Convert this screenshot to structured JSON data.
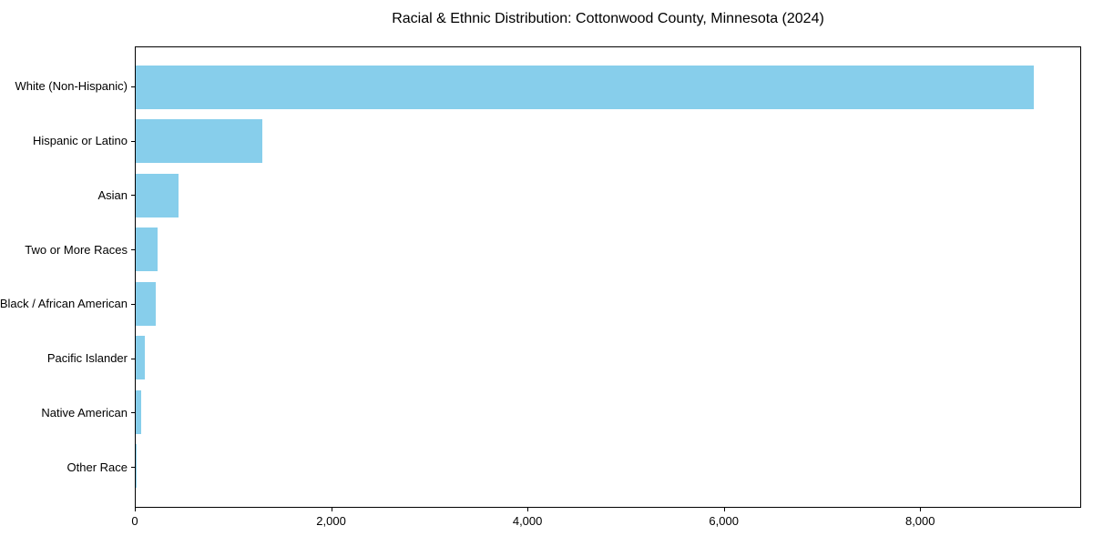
{
  "chart_data": {
    "type": "bar",
    "orientation": "horizontal",
    "title": "Racial & Ethnic Distribution: Cottonwood County, Minnesota (2024)",
    "categories": [
      "White (Non-Hispanic)",
      "Hispanic or Latino",
      "Asian",
      "Two or More Races",
      "Black / African American",
      "Pacific Islander",
      "Native American",
      "Other Race"
    ],
    "values": [
      9170,
      1290,
      440,
      225,
      200,
      95,
      55,
      10
    ],
    "xlabel": "",
    "ylabel": "",
    "xlim": [
      0,
      9640
    ],
    "xticks": [
      0,
      2000,
      4000,
      6000,
      8000
    ],
    "xtick_labels": [
      "0",
      "2,000",
      "4,000",
      "6,000",
      "8,000"
    ],
    "bar_color": "#87CEEB",
    "background": "#FFFFFF",
    "text_color": "#000000",
    "grid": false,
    "legend": "none"
  }
}
